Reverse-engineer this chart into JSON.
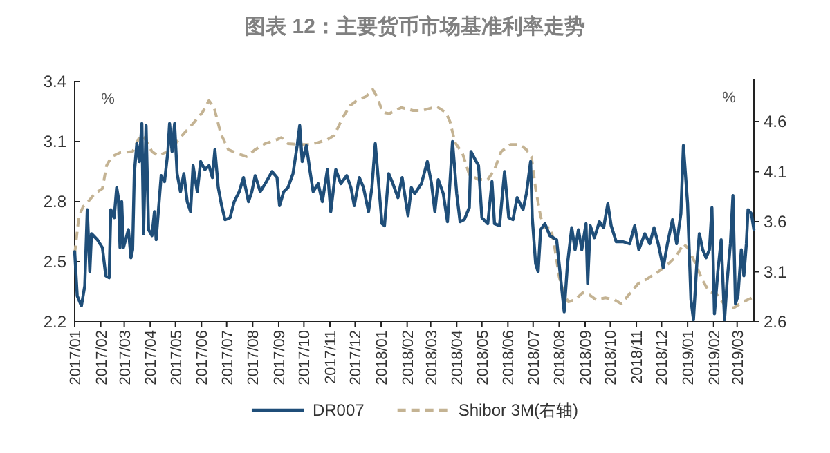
{
  "chart_data": {
    "type": "line",
    "title": "图表 12：主要货币市场基准利率走势",
    "ylabel": "%",
    "y2label": "%",
    "legend": "bottom",
    "xlim": [
      "2017-01-01",
      "2019-03-21"
    ],
    "xticks": [
      {
        "value": "2017-01-01",
        "label": "2017/01"
      },
      {
        "value": "2017-02-01",
        "label": "2017/02"
      },
      {
        "value": "2017-03-01",
        "label": "2017/03"
      },
      {
        "value": "2017-04-01",
        "label": "2017/04"
      },
      {
        "value": "2017-05-01",
        "label": "2017/05"
      },
      {
        "value": "2017-06-01",
        "label": "2017/06"
      },
      {
        "value": "2017-07-01",
        "label": "2017/07"
      },
      {
        "value": "2017-08-01",
        "label": "2017/08"
      },
      {
        "value": "2017-09-01",
        "label": "2017/09"
      },
      {
        "value": "2017-10-01",
        "label": "2017/10"
      },
      {
        "value": "2017-11-01",
        "label": "2017/11"
      },
      {
        "value": "2017-12-01",
        "label": "2017/12"
      },
      {
        "value": "2018-01-01",
        "label": "2018/01"
      },
      {
        "value": "2018-02-01",
        "label": "2018/02"
      },
      {
        "value": "2018-03-01",
        "label": "2018/03"
      },
      {
        "value": "2018-04-01",
        "label": "2018/04"
      },
      {
        "value": "2018-05-01",
        "label": "2018/05"
      },
      {
        "value": "2018-06-01",
        "label": "2018/06"
      },
      {
        "value": "2018-07-01",
        "label": "2018/07"
      },
      {
        "value": "2018-08-01",
        "label": "2018/08"
      },
      {
        "value": "2018-09-01",
        "label": "2018/09"
      },
      {
        "value": "2018-10-01",
        "label": "2018/10"
      },
      {
        "value": "2018-11-01",
        "label": "2018/11"
      },
      {
        "value": "2018-12-01",
        "label": "2018/12"
      },
      {
        "value": "2019-01-01",
        "label": "2019/01"
      },
      {
        "value": "2019-02-01",
        "label": "2019/02"
      },
      {
        "value": "2019-03-01",
        "label": "2019/03"
      }
    ],
    "ylim": [
      2.2,
      3.4
    ],
    "yticks": [
      2.2,
      2.5,
      2.8,
      3.1,
      3.4
    ],
    "y2lim": [
      2.6,
      5.0
    ],
    "y2ticks": [
      2.6,
      3.1,
      3.6,
      4.1,
      4.6
    ],
    "series": [
      {
        "name": "DR007",
        "color": "#1f4e79",
        "line_style": "solid",
        "x": [
          "2017-01-01",
          "2017-01-04",
          "2017-01-09",
          "2017-01-13",
          "2017-01-16",
          "2017-01-19",
          "2017-01-21",
          "2017-01-28",
          "2017-02-03",
          "2017-02-07",
          "2017-02-11",
          "2017-02-13",
          "2017-02-17",
          "2017-02-20",
          "2017-02-22",
          "2017-02-24",
          "2017-02-26",
          "2017-02-28",
          "2017-03-06",
          "2017-03-09",
          "2017-03-11",
          "2017-03-13",
          "2017-03-16",
          "2017-03-19",
          "2017-03-22",
          "2017-03-24",
          "2017-03-27",
          "2017-03-30",
          "2017-04-03",
          "2017-04-06",
          "2017-04-08",
          "2017-04-14",
          "2017-04-18",
          "2017-04-22",
          "2017-04-24",
          "2017-04-27",
          "2017-04-30",
          "2017-05-03",
          "2017-05-07",
          "2017-05-11",
          "2017-05-15",
          "2017-05-19",
          "2017-05-22",
          "2017-05-27",
          "2017-05-31",
          "2017-06-05",
          "2017-06-10",
          "2017-06-14",
          "2017-06-17",
          "2017-06-21",
          "2017-06-25",
          "2017-06-29",
          "2017-07-05",
          "2017-07-10",
          "2017-07-16",
          "2017-07-21",
          "2017-07-27",
          "2017-07-31",
          "2017-08-04",
          "2017-08-10",
          "2017-08-16",
          "2017-08-24",
          "2017-08-30",
          "2017-09-02",
          "2017-09-07",
          "2017-09-12",
          "2017-09-18",
          "2017-09-23",
          "2017-09-26",
          "2017-09-29",
          "2017-10-04",
          "2017-10-08",
          "2017-10-12",
          "2017-10-18",
          "2017-10-23",
          "2017-10-29",
          "2017-11-02",
          "2017-11-08",
          "2017-11-14",
          "2017-11-21",
          "2017-11-26",
          "2017-11-30",
          "2017-12-06",
          "2017-12-11",
          "2017-12-17",
          "2017-12-21",
          "2017-12-25",
          "2018-01-02",
          "2018-01-05",
          "2018-01-10",
          "2018-01-15",
          "2018-01-21",
          "2018-01-26",
          "2018-02-02",
          "2018-02-06",
          "2018-02-10",
          "2018-02-18",
          "2018-02-25",
          "2018-03-02",
          "2018-03-06",
          "2018-03-10",
          "2018-03-16",
          "2018-03-21",
          "2018-03-27",
          "2018-04-01",
          "2018-04-05",
          "2018-04-10",
          "2018-04-16",
          "2018-04-18",
          "2018-04-23",
          "2018-04-27",
          "2018-05-01",
          "2018-05-08",
          "2018-05-13",
          "2018-05-16",
          "2018-05-22",
          "2018-05-28",
          "2018-06-02",
          "2018-06-07",
          "2018-06-12",
          "2018-06-19",
          "2018-06-23",
          "2018-06-28",
          "2018-06-30",
          "2018-07-04",
          "2018-07-07",
          "2018-07-10",
          "2018-07-15",
          "2018-07-21",
          "2018-07-29",
          "2018-08-02",
          "2018-08-07",
          "2018-08-11",
          "2018-08-16",
          "2018-08-20",
          "2018-08-24",
          "2018-08-28",
          "2018-09-02",
          "2018-09-04",
          "2018-09-07",
          "2018-09-12",
          "2018-09-18",
          "2018-09-23",
          "2018-09-28",
          "2018-10-02",
          "2018-10-08",
          "2018-10-16",
          "2018-10-24",
          "2018-10-30",
          "2018-11-04",
          "2018-11-11",
          "2018-11-17",
          "2018-11-22",
          "2018-11-27",
          "2018-12-03",
          "2018-12-08",
          "2018-12-14",
          "2018-12-19",
          "2018-12-24",
          "2018-12-27",
          "2019-01-01",
          "2019-01-05",
          "2019-01-08",
          "2019-01-12",
          "2019-01-15",
          "2019-01-19",
          "2019-01-23",
          "2019-01-27",
          "2019-01-30",
          "2019-02-02",
          "2019-02-06",
          "2019-02-10",
          "2019-02-14",
          "2019-02-17",
          "2019-02-21",
          "2019-02-24",
          "2019-02-27",
          "2019-03-02",
          "2019-03-06",
          "2019-03-09",
          "2019-03-12",
          "2019-03-14",
          "2019-03-18",
          "2019-03-21"
        ],
        "values": [
          2.55,
          2.33,
          2.28,
          2.38,
          2.76,
          2.45,
          2.64,
          2.61,
          2.57,
          2.43,
          2.42,
          2.76,
          2.72,
          2.87,
          2.82,
          2.57,
          2.8,
          2.57,
          2.66,
          2.52,
          2.56,
          2.94,
          3.09,
          3.0,
          3.19,
          2.64,
          3.18,
          2.66,
          2.63,
          2.75,
          2.61,
          2.93,
          2.9,
          3.05,
          3.19,
          3.05,
          3.19,
          2.94,
          2.85,
          2.94,
          2.8,
          2.75,
          2.98,
          2.85,
          3.0,
          2.96,
          2.98,
          2.92,
          3.06,
          2.87,
          2.78,
          2.71,
          2.72,
          2.8,
          2.85,
          2.92,
          2.8,
          2.85,
          2.93,
          2.85,
          2.89,
          2.95,
          2.92,
          2.78,
          2.85,
          2.87,
          2.94,
          3.08,
          3.18,
          3.0,
          3.08,
          2.96,
          2.85,
          2.89,
          2.8,
          2.96,
          2.75,
          2.96,
          2.89,
          2.93,
          2.87,
          2.78,
          2.92,
          2.87,
          2.75,
          2.87,
          3.09,
          2.69,
          2.68,
          2.94,
          2.89,
          2.82,
          2.92,
          2.73,
          2.87,
          2.84,
          2.89,
          3.0,
          2.89,
          2.75,
          2.91,
          2.84,
          2.7,
          3.1,
          2.84,
          2.7,
          2.71,
          2.77,
          3.05,
          3.01,
          2.98,
          2.72,
          2.69,
          2.9,
          2.69,
          2.68,
          2.95,
          2.72,
          2.71,
          2.82,
          2.76,
          2.84,
          3.0,
          2.72,
          2.49,
          2.45,
          2.66,
          2.69,
          2.63,
          2.61,
          2.45,
          2.25,
          2.49,
          2.67,
          2.56,
          2.66,
          2.56,
          2.69,
          2.39,
          2.68,
          2.62,
          2.7,
          2.67,
          2.79,
          2.68,
          2.6,
          2.6,
          2.59,
          2.68,
          2.56,
          2.64,
          2.59,
          2.67,
          2.59,
          2.47,
          2.59,
          2.71,
          2.59,
          2.74,
          3.08,
          2.79,
          2.31,
          2.21,
          2.49,
          2.64,
          2.56,
          2.52,
          2.56,
          2.77,
          2.24,
          2.45,
          2.61,
          2.21,
          2.4,
          2.59,
          2.83,
          2.29,
          2.33,
          2.56,
          2.43,
          2.59,
          2.76,
          2.74,
          2.66
        ]
      },
      {
        "name": "Shibor 3M(右轴)",
        "color": "#c4b393",
        "line_style": "dashed",
        "axis": "y2",
        "x": [
          "2017-01-01",
          "2017-01-06",
          "2017-01-11",
          "2017-01-17",
          "2017-01-25",
          "2017-02-03",
          "2017-02-08",
          "2017-02-14",
          "2017-02-24",
          "2017-03-11",
          "2017-03-20",
          "2017-03-25",
          "2017-04-03",
          "2017-04-10",
          "2017-04-22",
          "2017-04-30",
          "2017-05-11",
          "2017-05-22",
          "2017-06-02",
          "2017-06-10",
          "2017-06-16",
          "2017-06-24",
          "2017-07-03",
          "2017-07-14",
          "2017-07-25",
          "2017-08-04",
          "2017-08-16",
          "2017-08-30",
          "2017-09-04",
          "2017-09-12",
          "2017-09-26",
          "2017-10-07",
          "2017-10-18",
          "2017-10-29",
          "2017-11-06",
          "2017-11-17",
          "2017-11-25",
          "2017-12-03",
          "2017-12-14",
          "2017-12-22",
          "2017-12-27",
          "2018-01-03",
          "2018-01-11",
          "2018-01-25",
          "2018-02-08",
          "2018-02-19",
          "2018-03-08",
          "2018-03-19",
          "2018-03-24",
          "2018-03-30",
          "2018-04-08",
          "2018-04-16",
          "2018-04-27",
          "2018-05-08",
          "2018-05-16",
          "2018-05-24",
          "2018-06-04",
          "2018-06-15",
          "2018-06-23",
          "2018-06-29",
          "2018-07-04",
          "2018-07-10",
          "2018-07-15",
          "2018-07-22",
          "2018-07-26",
          "2018-08-01",
          "2018-08-07",
          "2018-08-12",
          "2018-08-20",
          "2018-08-29",
          "2018-09-06",
          "2018-09-14",
          "2018-09-25",
          "2018-10-06",
          "2018-10-14",
          "2018-10-23",
          "2018-11-03",
          "2018-11-14",
          "2018-11-27",
          "2018-12-08",
          "2018-12-19",
          "2018-12-27",
          "2019-01-02",
          "2019-01-11",
          "2019-01-19",
          "2019-01-27",
          "2019-02-05",
          "2019-02-16",
          "2019-02-25",
          "2019-03-08",
          "2019-03-19"
        ],
        "values": [
          3.28,
          3.65,
          3.75,
          3.8,
          3.88,
          3.93,
          4.16,
          4.25,
          4.29,
          4.3,
          4.46,
          4.44,
          4.3,
          4.26,
          4.3,
          4.37,
          4.48,
          4.58,
          4.69,
          4.81,
          4.74,
          4.48,
          4.32,
          4.28,
          4.25,
          4.32,
          4.38,
          4.42,
          4.44,
          4.38,
          4.37,
          4.37,
          4.39,
          4.42,
          4.46,
          4.65,
          4.76,
          4.81,
          4.85,
          4.92,
          4.85,
          4.69,
          4.68,
          4.74,
          4.71,
          4.71,
          4.75,
          4.69,
          4.6,
          4.39,
          4.28,
          4.07,
          4.02,
          4.02,
          4.12,
          4.3,
          4.37,
          4.37,
          4.32,
          4.25,
          3.93,
          3.65,
          3.54,
          3.54,
          3.38,
          3.05,
          2.87,
          2.8,
          2.82,
          2.89,
          2.87,
          2.82,
          2.84,
          2.82,
          2.78,
          2.87,
          2.98,
          3.03,
          3.1,
          3.17,
          3.26,
          3.38,
          3.33,
          3.17,
          3.01,
          2.9,
          2.87,
          2.75,
          2.74,
          2.8,
          2.84
        ]
      }
    ]
  }
}
